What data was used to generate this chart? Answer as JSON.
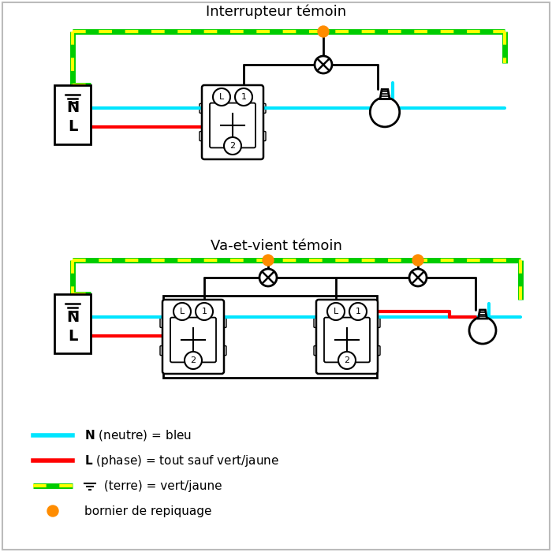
{
  "title1": "Interrupteur témoin",
  "title2": "Va-et-vient témoin",
  "cyan": "#00e5ff",
  "red": "#ff0000",
  "green_y": "#aaff00",
  "black": "#000000",
  "orange": "#ff8c00",
  "white": "#ffffff",
  "bg": "#ffffff",
  "lw_wire": 3.0,
  "lw_black": 2.0,
  "legend_N": "N (neutre) = bleu",
  "legend_L": "L (phase) = tout sauf vert/jaune",
  "legend_T": " (terre) = vert/jaune",
  "legend_B": "bornier de repiquage"
}
